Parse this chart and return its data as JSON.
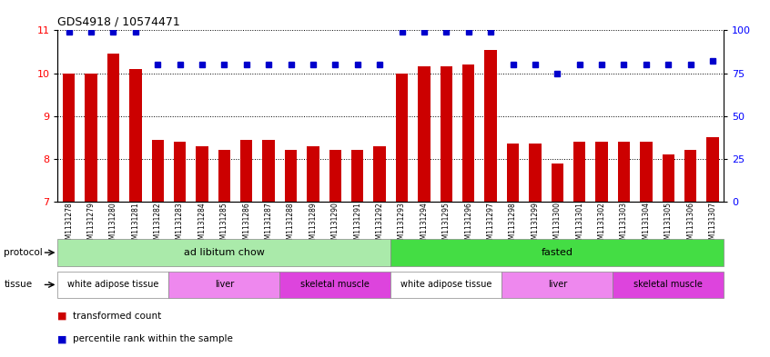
{
  "title": "GDS4918 / 10574471",
  "samples": [
    "GSM1131278",
    "GSM1131279",
    "GSM1131280",
    "GSM1131281",
    "GSM1131282",
    "GSM1131283",
    "GSM1131284",
    "GSM1131285",
    "GSM1131286",
    "GSM1131287",
    "GSM1131288",
    "GSM1131289",
    "GSM1131290",
    "GSM1131291",
    "GSM1131292",
    "GSM1131293",
    "GSM1131294",
    "GSM1131295",
    "GSM1131296",
    "GSM1131297",
    "GSM1131298",
    "GSM1131299",
    "GSM1131300",
    "GSM1131301",
    "GSM1131302",
    "GSM1131303",
    "GSM1131304",
    "GSM1131305",
    "GSM1131306",
    "GSM1131307"
  ],
  "bar_values": [
    10.0,
    10.0,
    10.45,
    10.1,
    8.45,
    8.4,
    8.3,
    8.2,
    8.45,
    8.45,
    8.2,
    8.3,
    8.2,
    8.2,
    8.3,
    10.0,
    10.15,
    10.15,
    10.2,
    10.55,
    8.35,
    8.35,
    7.9,
    8.4,
    8.4,
    8.4,
    8.4,
    8.1,
    8.2,
    8.5
  ],
  "percentile_values": [
    99,
    99,
    99,
    99,
    80,
    80,
    80,
    80,
    80,
    80,
    80,
    80,
    80,
    80,
    80,
    99,
    99,
    99,
    99,
    99,
    80,
    80,
    75,
    80,
    80,
    80,
    80,
    80,
    80,
    82
  ],
  "ylim_left": [
    7,
    11
  ],
  "ylim_right": [
    0,
    100
  ],
  "yticks_left": [
    7,
    8,
    9,
    10,
    11
  ],
  "yticks_right": [
    0,
    25,
    50,
    75,
    100
  ],
  "bar_color": "#cc0000",
  "dot_color": "#0000cc",
  "protocol_groups": [
    {
      "label": "ad libitum chow",
      "start": 0,
      "end": 14,
      "color": "#aaeaaa"
    },
    {
      "label": "fasted",
      "start": 15,
      "end": 29,
      "color": "#44dd44"
    }
  ],
  "tissue_groups": [
    {
      "label": "white adipose tissue",
      "start": 0,
      "end": 4,
      "color": "#ffffff"
    },
    {
      "label": "liver",
      "start": 5,
      "end": 9,
      "color": "#ee88ee"
    },
    {
      "label": "skeletal muscle",
      "start": 10,
      "end": 14,
      "color": "#dd44dd"
    },
    {
      "label": "white adipose tissue",
      "start": 15,
      "end": 19,
      "color": "#ffffff"
    },
    {
      "label": "liver",
      "start": 20,
      "end": 24,
      "color": "#ee88ee"
    },
    {
      "label": "skeletal muscle",
      "start": 25,
      "end": 29,
      "color": "#dd44dd"
    }
  ],
  "legend_items": [
    {
      "label": "transformed count",
      "color": "#cc0000"
    },
    {
      "label": "percentile rank within the sample",
      "color": "#0000cc"
    }
  ],
  "background_color": "#ffffff"
}
